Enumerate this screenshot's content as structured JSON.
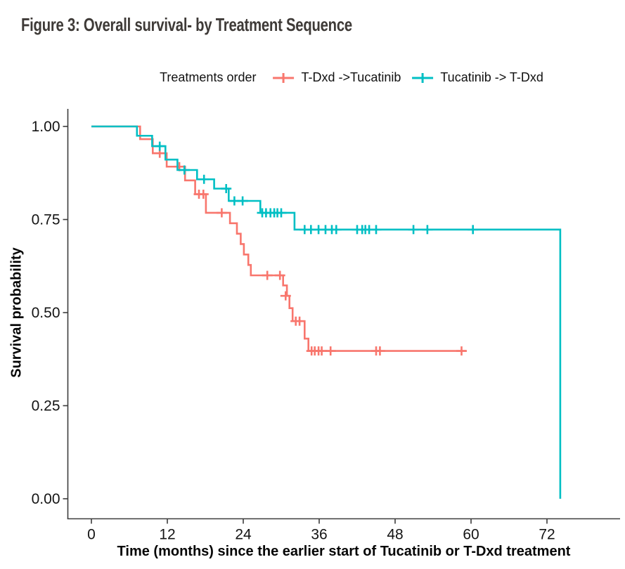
{
  "figure": {
    "title": "Figure 3: Overall survival- by Treatment Sequence"
  },
  "chart_data": {
    "type": "line",
    "subtype": "kaplan-meier-step-curve",
    "title": "Figure 3: Overall survival- by Treatment Sequence",
    "legend_title": "Treatments order",
    "legend_position": "top",
    "grid": false,
    "xlabel": "Time (months) since the earlier start of Tucatinib or T-Dxd treatment",
    "ylabel": "Survival probability",
    "xlim": [
      0,
      78
    ],
    "ylim": [
      0.0,
      1.0
    ],
    "xticks": [
      0,
      12,
      24,
      36,
      48,
      60,
      72
    ],
    "yticks": [
      {
        "value": 0.0,
        "label": "0.00"
      },
      {
        "value": 0.25,
        "label": "0.25"
      },
      {
        "value": 0.5,
        "label": "0.50"
      },
      {
        "value": 0.75,
        "label": "0.75"
      },
      {
        "value": 1.0,
        "label": "1.00"
      }
    ],
    "axis_color": "#3c3c3c",
    "series": [
      {
        "name": "T-Dxd ->Tucatinib",
        "color": "#F8766D",
        "steps": [
          [
            0,
            1.0
          ],
          [
            7.7,
            0.966
          ],
          [
            9.7,
            0.928
          ],
          [
            11.9,
            0.892
          ],
          [
            14.8,
            0.855
          ],
          [
            16.4,
            0.818
          ],
          [
            18.1,
            0.768
          ],
          [
            21.9,
            0.74
          ],
          [
            23.0,
            0.712
          ],
          [
            23.6,
            0.684
          ],
          [
            24.1,
            0.656
          ],
          [
            24.8,
            0.628
          ],
          [
            25.2,
            0.6
          ],
          [
            30.3,
            0.573
          ],
          [
            30.9,
            0.545
          ],
          [
            31.3,
            0.512
          ],
          [
            31.8,
            0.477
          ],
          [
            33.7,
            0.43
          ],
          [
            34.3,
            0.397
          ],
          [
            59.2,
            0.397
          ]
        ],
        "censors": [
          [
            10.8,
            0.928
          ],
          [
            13.9,
            0.892
          ],
          [
            17.0,
            0.818
          ],
          [
            17.7,
            0.818
          ],
          [
            20.6,
            0.768
          ],
          [
            27.8,
            0.6
          ],
          [
            29.8,
            0.6
          ],
          [
            30.7,
            0.545
          ],
          [
            32.3,
            0.477
          ],
          [
            32.9,
            0.477
          ],
          [
            34.8,
            0.397
          ],
          [
            35.3,
            0.397
          ],
          [
            35.9,
            0.397
          ],
          [
            36.4,
            0.397
          ],
          [
            37.8,
            0.397
          ],
          [
            45.0,
            0.397
          ],
          [
            45.6,
            0.397
          ],
          [
            58.5,
            0.397
          ]
        ],
        "ends_with_drop_to_zero": false
      },
      {
        "name": "Tucatinib -> T-Dxd",
        "color": "#00BFC4",
        "steps": [
          [
            0,
            1.0
          ],
          [
            7.2,
            0.975
          ],
          [
            9.6,
            0.947
          ],
          [
            11.7,
            0.911
          ],
          [
            13.6,
            0.883
          ],
          [
            16.7,
            0.858
          ],
          [
            19.4,
            0.833
          ],
          [
            21.7,
            0.8
          ],
          [
            26.7,
            0.768
          ],
          [
            32.1,
            0.723
          ],
          [
            74.1,
            0.0
          ]
        ],
        "censors": [
          [
            10.8,
            0.947
          ],
          [
            14.7,
            0.883
          ],
          [
            17.8,
            0.858
          ],
          [
            21.3,
            0.833
          ],
          [
            22.6,
            0.8
          ],
          [
            23.9,
            0.8
          ],
          [
            27.0,
            0.768
          ],
          [
            27.6,
            0.768
          ],
          [
            28.3,
            0.768
          ],
          [
            28.9,
            0.768
          ],
          [
            29.4,
            0.768
          ],
          [
            30.0,
            0.768
          ],
          [
            33.7,
            0.723
          ],
          [
            34.7,
            0.723
          ],
          [
            35.9,
            0.723
          ],
          [
            37.0,
            0.723
          ],
          [
            38.0,
            0.723
          ],
          [
            38.7,
            0.723
          ],
          [
            42.0,
            0.723
          ],
          [
            42.8,
            0.723
          ],
          [
            43.3,
            0.723
          ],
          [
            43.9,
            0.723
          ],
          [
            45.0,
            0.723
          ],
          [
            50.9,
            0.723
          ],
          [
            53.1,
            0.723
          ],
          [
            60.3,
            0.723
          ]
        ],
        "ends_with_drop_to_zero": true
      }
    ]
  }
}
